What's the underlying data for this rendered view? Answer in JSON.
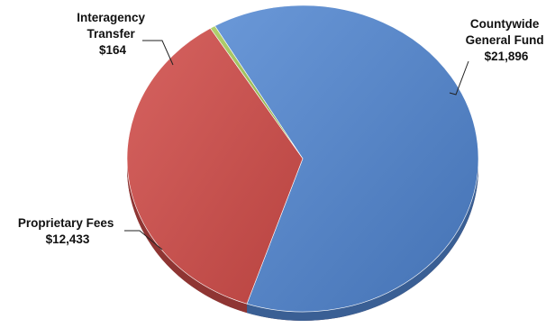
{
  "chart_data": {
    "type": "pie",
    "title": "",
    "style": "3d-tilted",
    "legend": "none",
    "slices": [
      {
        "category_lines": [
          "Countywide",
          "General Fund"
        ],
        "value_label": "$21,896",
        "value": 21896,
        "color": "#5282c4"
      },
      {
        "category_lines": [
          "Proprietary Fees"
        ],
        "value_label": "$12,433",
        "value": 12433,
        "color": "#c9504e"
      },
      {
        "category_lines": [
          "Interagency",
          "Transfer"
        ],
        "value_label": "$164",
        "value": 164,
        "color": "#9bbb59"
      }
    ]
  }
}
